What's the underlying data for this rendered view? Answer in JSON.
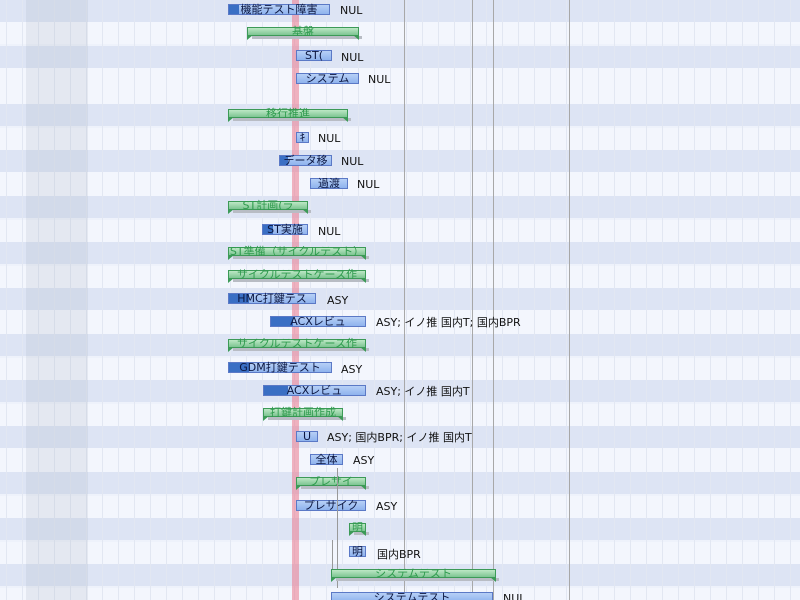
{
  "rows": [
    {
      "type": "task",
      "label": "機能テスト障害",
      "res": "NUL"
    },
    {
      "type": "summary",
      "label": "基盤"
    },
    {
      "type": "task",
      "label": "ST(",
      "res": "NUL"
    },
    {
      "type": "task",
      "label": "システム",
      "res": "NUL"
    },
    {
      "type": "summary",
      "label": "移行推進"
    },
    {
      "type": "task",
      "label": "ｷ",
      "res": "NUL"
    },
    {
      "type": "task",
      "label": "データ移",
      "res": "NUL"
    },
    {
      "type": "task",
      "label": "過渡",
      "res": "NUL"
    },
    {
      "type": "summary",
      "label": "ST計画(ラ"
    },
    {
      "type": "task",
      "label": "ST実施",
      "res": "NUL"
    },
    {
      "type": "summary",
      "label": "ST準備（サイクルテスト）"
    },
    {
      "type": "summary",
      "label": "サイクルテストケース作"
    },
    {
      "type": "task",
      "label": "HMC打鍵テス",
      "res": "ASY"
    },
    {
      "type": "task",
      "label": "ACXレビュ",
      "res": "ASY; イノ推 国内T; 国内BPR"
    },
    {
      "type": "summary",
      "label": "サイクルテストケース作"
    },
    {
      "type": "task",
      "label": "GDM打鍵テスト",
      "res": "ASY"
    },
    {
      "type": "task",
      "label": "ACXレビュ",
      "res": "ASY; イノ推 国内T"
    },
    {
      "type": "summary",
      "label": "打鍵計画作成"
    },
    {
      "type": "task",
      "label": "U",
      "res": "ASY; 国内BPR; イノ推 国内T"
    },
    {
      "type": "task",
      "label": "全体",
      "res": "ASY"
    },
    {
      "type": "summary",
      "label": "プレサイ"
    },
    {
      "type": "task",
      "label": "プレサイク",
      "res": "ASY"
    },
    {
      "type": "summary",
      "label": "明"
    },
    {
      "type": "task",
      "label": "明",
      "res": "国内BPR"
    },
    {
      "type": "summary",
      "label": "システムテスト"
    },
    {
      "type": "task",
      "label": "システムテスト",
      "res": "NUL"
    }
  ]
}
